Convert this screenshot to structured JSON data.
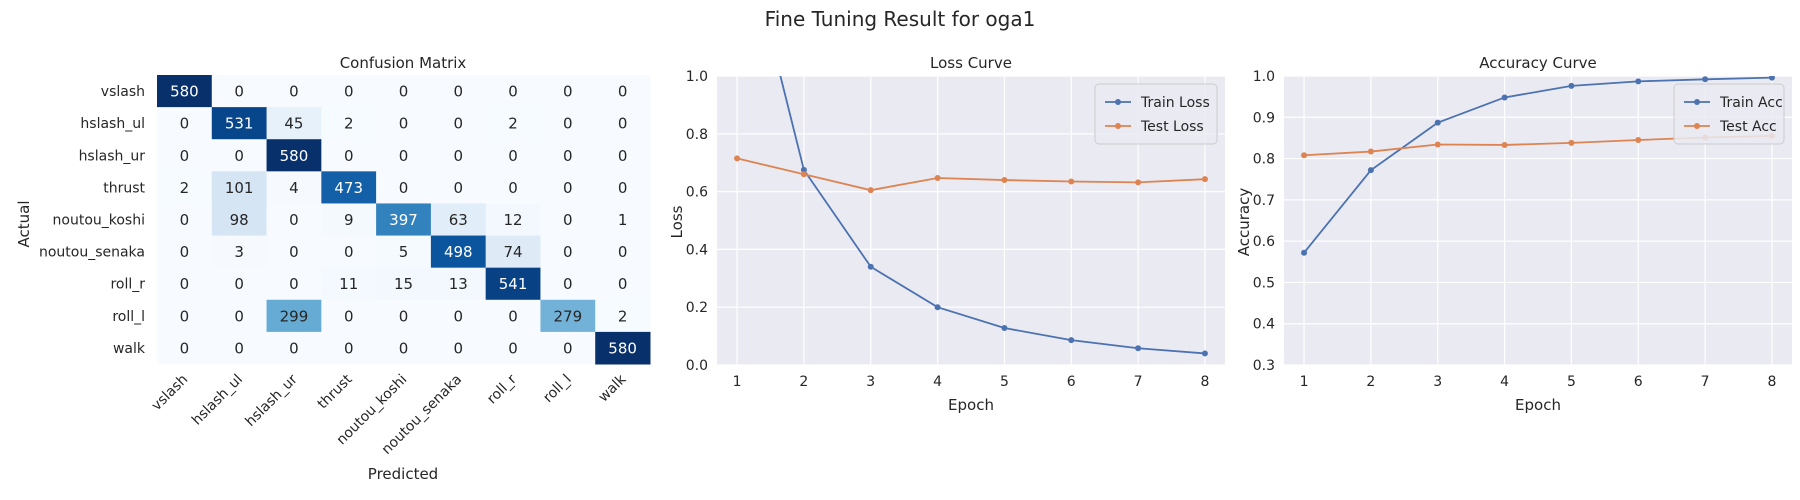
{
  "suptitle": "Fine Tuning Result for oga1",
  "chart_data": [
    {
      "type": "heatmap",
      "title": "Confusion Matrix",
      "xlabel": "Predicted",
      "ylabel": "Actual",
      "labels": [
        "vslash",
        "hslash_ul",
        "hslash_ur",
        "thrust",
        "noutou_koshi",
        "noutou_senaka",
        "roll_r",
        "roll_l",
        "walk"
      ],
      "matrix": [
        [
          580,
          0,
          0,
          0,
          0,
          0,
          0,
          0,
          0
        ],
        [
          0,
          531,
          45,
          2,
          0,
          0,
          2,
          0,
          0
        ],
        [
          0,
          0,
          580,
          0,
          0,
          0,
          0,
          0,
          0
        ],
        [
          2,
          101,
          4,
          473,
          0,
          0,
          0,
          0,
          0
        ],
        [
          0,
          98,
          0,
          9,
          397,
          63,
          12,
          0,
          1
        ],
        [
          0,
          3,
          0,
          0,
          5,
          498,
          74,
          0,
          0
        ],
        [
          0,
          0,
          0,
          11,
          15,
          13,
          541,
          0,
          0
        ],
        [
          0,
          0,
          299,
          0,
          0,
          0,
          0,
          279,
          2
        ],
        [
          0,
          0,
          0,
          0,
          0,
          0,
          0,
          0,
          580
        ]
      ],
      "colormap": "Blues",
      "vmin": 0,
      "vmax": 580
    },
    {
      "type": "line",
      "title": "Loss Curve",
      "xlabel": "Epoch",
      "ylabel": "Loss",
      "x": [
        1,
        2,
        3,
        4,
        5,
        6,
        7,
        8
      ],
      "xticks": [
        1,
        2,
        3,
        4,
        5,
        6,
        7,
        8
      ],
      "yticks": [
        0.0,
        0.2,
        0.4,
        0.6,
        0.8,
        1.0
      ],
      "ytick_labels": [
        "0.0",
        "0.2",
        "0.4",
        "0.6",
        "0.8",
        "1.0"
      ],
      "xlim": [
        0.7,
        8.3
      ],
      "ylim": [
        0,
        1
      ],
      "grid": true,
      "legend": "upper right",
      "series": [
        {
          "name": "Train Loss",
          "color": "#4c72b0",
          "values": [
            1.6,
            0.675,
            0.34,
            0.2,
            0.128,
            0.086,
            0.058,
            0.04
          ]
        },
        {
          "name": "Test Loss",
          "color": "#dd8452",
          "values": [
            0.715,
            0.66,
            0.605,
            0.647,
            0.64,
            0.635,
            0.632,
            0.643
          ]
        }
      ]
    },
    {
      "type": "line",
      "title": "Accuracy Curve",
      "xlabel": "Epoch",
      "ylabel": "Accuracy",
      "x": [
        1,
        2,
        3,
        4,
        5,
        6,
        7,
        8
      ],
      "xticks": [
        1,
        2,
        3,
        4,
        5,
        6,
        7,
        8
      ],
      "yticks": [
        0.3,
        0.4,
        0.5,
        0.6,
        0.7,
        0.8,
        0.9,
        1.0
      ],
      "ytick_labels": [
        "0.3",
        "0.4",
        "0.5",
        "0.6",
        "0.7",
        "0.8",
        "0.9",
        "1.0"
      ],
      "xlim": [
        0.7,
        8.3
      ],
      "ylim": [
        0.3,
        1.0
      ],
      "grid": true,
      "legend": "upper right",
      "series": [
        {
          "name": "Train Acc",
          "color": "#4c72b0",
          "values": [
            0.572,
            0.772,
            0.887,
            0.948,
            0.976,
            0.987,
            0.992,
            0.996
          ]
        },
        {
          "name": "Test Acc",
          "color": "#dd8452",
          "values": [
            0.808,
            0.817,
            0.834,
            0.833,
            0.838,
            0.845,
            0.851,
            0.855
          ]
        }
      ]
    }
  ]
}
